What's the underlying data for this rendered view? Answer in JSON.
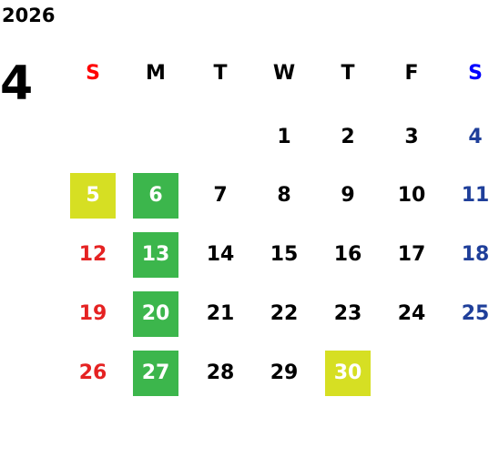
{
  "calendar": {
    "year": "2026",
    "month": "4",
    "weekdays": [
      {
        "label": "S",
        "color": "#ff0000"
      },
      {
        "label": "M",
        "color": "#000000"
      },
      {
        "label": "T",
        "color": "#000000"
      },
      {
        "label": "W",
        "color": "#000000"
      },
      {
        "label": "T",
        "color": "#000000"
      },
      {
        "label": "F",
        "color": "#000000"
      },
      {
        "label": "S",
        "color": "#0000ff"
      }
    ],
    "weeks": [
      [
        "",
        "",
        "",
        "1",
        "2",
        "3",
        "4"
      ],
      [
        "5",
        "6",
        "7",
        "8",
        "9",
        "10",
        "11"
      ],
      [
        "12",
        "13",
        "14",
        "15",
        "16",
        "17",
        "18"
      ],
      [
        "19",
        "20",
        "21",
        "22",
        "23",
        "24",
        "25"
      ],
      [
        "26",
        "27",
        "28",
        "29",
        "30",
        "",
        ""
      ]
    ],
    "highlights": {
      "green_days": [
        "6",
        "13",
        "20",
        "27"
      ],
      "yellow_days": [
        "5",
        "30"
      ],
      "green_color": "#3cb64c",
      "yellow_color": "#d6df23"
    }
  }
}
